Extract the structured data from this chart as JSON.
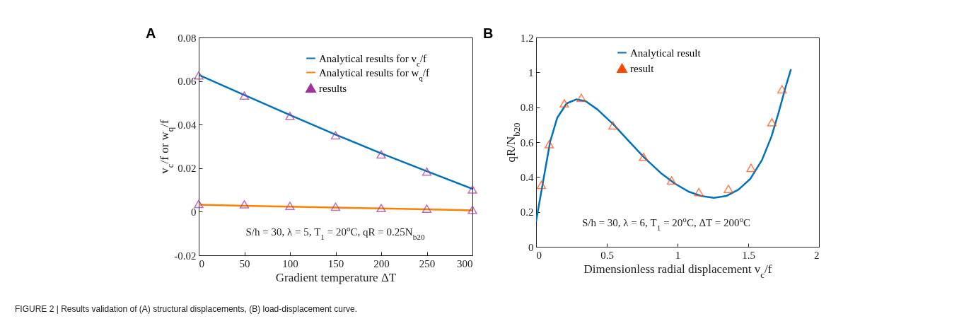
{
  "chart_data": [
    {
      "type": "line",
      "title": "A",
      "xlabel": "Gradient temperature ΔT",
      "ylabel": "v$_{c}$/f or w$_{q}$/f",
      "x": [
        0,
        50,
        100,
        150,
        200,
        250,
        300
      ],
      "xlim": [
        0,
        300
      ],
      "xticks": [
        0,
        50,
        100,
        150,
        200,
        250,
        300
      ],
      "ylim": [
        -0.02,
        0.08
      ],
      "yticks": [
        -0.02,
        0,
        0.02,
        0.04,
        0.06,
        0.08
      ],
      "legend": "top right",
      "grid": false,
      "annotations": [
        "S/h = 30, λ = 5, T$_{1}$ = 20$^{o}$C, qR = 0.25N$_{b20}$",
        "FIGURE 2 | Results validation of (A) structural displacements, (B) load-displacement curve."
      ],
      "series": [
        {
          "name": "Analytical results for v$_{c}$/f",
          "type": "line",
          "color": "#0072bd",
          "values": [
            0.0628,
            0.0536,
            0.0444,
            0.0354,
            0.0268,
            0.0186,
            0.0105
          ]
        },
        {
          "name": "Analytical results for w$_{q}$/f",
          "type": "line",
          "color": "#ff8000",
          "values": [
            0.0032,
            0.0027,
            0.0023,
            0.0019,
            0.0015,
            0.0011,
            0.0006
          ]
        },
        {
          "name": "results",
          "type": "scatter",
          "marker": "triangle",
          "color": "#a2329e",
          "x": [
            0,
            50,
            100,
            150,
            200,
            250,
            300,
            0,
            50,
            100,
            150,
            200,
            250,
            300
          ],
          "values": [
            0.0626,
            0.0533,
            0.044,
            0.0351,
            0.0263,
            0.0184,
            0.0102,
            0.0036,
            0.0034,
            0.0027,
            0.0023,
            0.0017,
            0.0014,
            0.0009
          ]
        }
      ]
    },
    {
      "type": "line",
      "title": "B",
      "xlabel": "Dimensionless radial displacement v$_{c}$/f",
      "ylabel": "qR/N$_{b20}$",
      "xlim": [
        0,
        2
      ],
      "xticks": [
        0,
        0.5,
        1,
        1.5,
        2
      ],
      "ylim": [
        0,
        1.2
      ],
      "yticks": [
        0,
        0.2,
        0.4,
        0.6,
        0.8,
        1,
        1.2
      ],
      "legend": "top",
      "grid": false,
      "annotations": [
        "S/h = 30, λ = 6, T$_{1}$ = 20$^{o}$C, ΔT = 200$^{o}$C"
      ],
      "series": [
        {
          "name": "Analytical result",
          "type": "line",
          "color": "#0072bd",
          "x": [
            0,
            0.05,
            0.1,
            0.15,
            0.216,
            0.283,
            0.35,
            0.433,
            0.549,
            0.649,
            0.765,
            0.882,
            0.982,
            1.082,
            1.165,
            1.256,
            1.348,
            1.431,
            1.514,
            1.597,
            1.664,
            1.714,
            1.764,
            1.802
          ],
          "values": [
            0.146,
            0.376,
            0.605,
            0.74,
            0.822,
            0.845,
            0.835,
            0.788,
            0.7,
            0.612,
            0.511,
            0.423,
            0.362,
            0.315,
            0.292,
            0.281,
            0.292,
            0.328,
            0.389,
            0.497,
            0.632,
            0.768,
            0.916,
            1.018
          ]
        },
        {
          "name": "result",
          "type": "scatter",
          "marker": "triangle",
          "color": "#ff4500",
          "x": [
            0.037,
            0.093,
            0.2,
            0.32,
            0.544,
            0.76,
            0.958,
            1.151,
            1.36,
            1.52,
            1.667,
            1.739
          ],
          "values": [
            0.355,
            0.588,
            0.822,
            0.854,
            0.696,
            0.515,
            0.381,
            0.314,
            0.332,
            0.453,
            0.714,
            0.903
          ]
        }
      ]
    }
  ]
}
